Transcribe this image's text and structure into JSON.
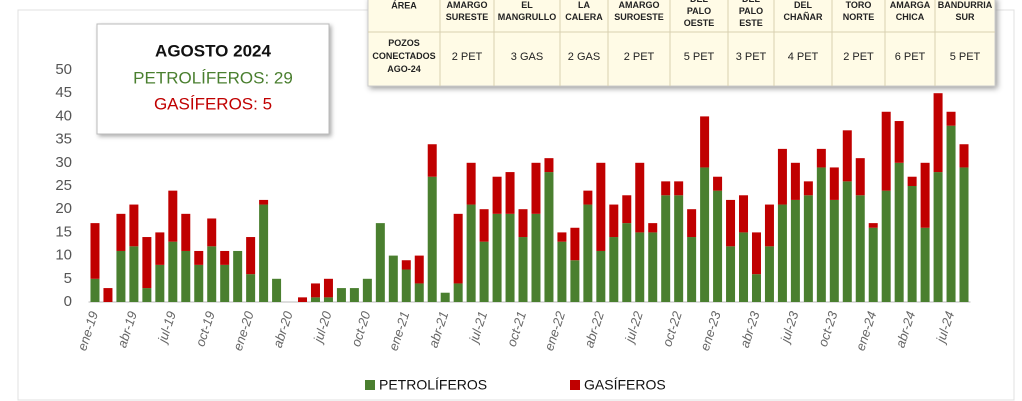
{
  "chart_data": {
    "type": "stacked_bar",
    "categories": [
      "ene-19",
      null,
      null,
      "abr-19",
      null,
      null,
      "jul-19",
      null,
      null,
      "oct-19",
      null,
      null,
      "ene-20",
      null,
      null,
      "abr-20",
      null,
      null,
      "jul-20",
      null,
      null,
      "oct-20",
      null,
      null,
      "ene-21",
      null,
      null,
      "abr-21",
      null,
      null,
      "jul-21",
      null,
      null,
      "oct-21",
      null,
      null,
      "ene-22",
      null,
      null,
      "abr-22",
      null,
      null,
      "jul-22",
      null,
      null,
      "oct-22",
      null,
      null,
      "ene-23",
      null,
      null,
      "abr-23",
      null,
      null,
      "jul-23",
      null,
      null,
      "oct-23",
      null,
      null,
      "ene-24",
      null,
      null,
      "abr-24",
      null,
      null,
      "jul-24",
      null
    ],
    "series": [
      {
        "name": "PETROLÍFEROS",
        "color": "#4a7f2f",
        "values": [
          5,
          0,
          11,
          12,
          3,
          8,
          13,
          11,
          8,
          12,
          8,
          11,
          6,
          21,
          5,
          0,
          0,
          1,
          1,
          3,
          3,
          5,
          17,
          10,
          7,
          4,
          27,
          2,
          4,
          21,
          13,
          19,
          19,
          14,
          19,
          28,
          13,
          9,
          21,
          11,
          14,
          17,
          15,
          15,
          23,
          23,
          14,
          29,
          24,
          12,
          15,
          6,
          12,
          21,
          22,
          23,
          29,
          22,
          26,
          23,
          16,
          24,
          30,
          25,
          16,
          28,
          38,
          29
        ]
      },
      {
        "name": "GASÍFEROS",
        "color": "#c00000",
        "values": [
          12,
          3,
          8,
          9,
          11,
          7,
          11,
          8,
          3,
          6,
          3,
          0,
          8,
          1,
          0,
          0,
          1,
          3,
          4,
          0,
          0,
          0,
          0,
          0,
          2,
          6,
          7,
          0,
          15,
          9,
          7,
          8,
          9,
          6,
          11,
          3,
          2,
          7,
          3,
          19,
          7,
          6,
          15,
          2,
          3,
          3,
          6,
          11,
          3,
          10,
          8,
          9,
          9,
          12,
          8,
          3,
          4,
          7,
          11,
          8,
          1,
          17,
          9,
          2,
          14,
          17,
          3,
          5
        ]
      }
    ],
    "ylim": [
      0,
      50
    ],
    "yticks": [
      0,
      5,
      10,
      15,
      20,
      25,
      30,
      35,
      40,
      45,
      50
    ],
    "grid": false,
    "legend": "bottom",
    "annotation": {
      "title": "AGOSTO 2024",
      "lines": [
        "PETROLÍFEROS: 29",
        "GASÍFEROS: 5"
      ]
    }
  },
  "table": {
    "header": [
      "ÁREA",
      "AMARGO SURESTE",
      "EL MANGRULLO",
      "LA CALERA",
      "AMARGO SUROESTE",
      "DEL PALO OESTE",
      "DEL PALO ESTE",
      "DEL CHAÑAR",
      "TORO NORTE",
      "AMARGA CHICA",
      "BANDURRIA SUR"
    ],
    "rows": [
      [
        "POZOS CONECTADOS AGO-24",
        "2 PET",
        "3 GAS",
        "2 GAS",
        "2 PET",
        "5 PET",
        "3 PET",
        "4 PET",
        "2 PET",
        "6 PET",
        "5 PET"
      ]
    ]
  }
}
